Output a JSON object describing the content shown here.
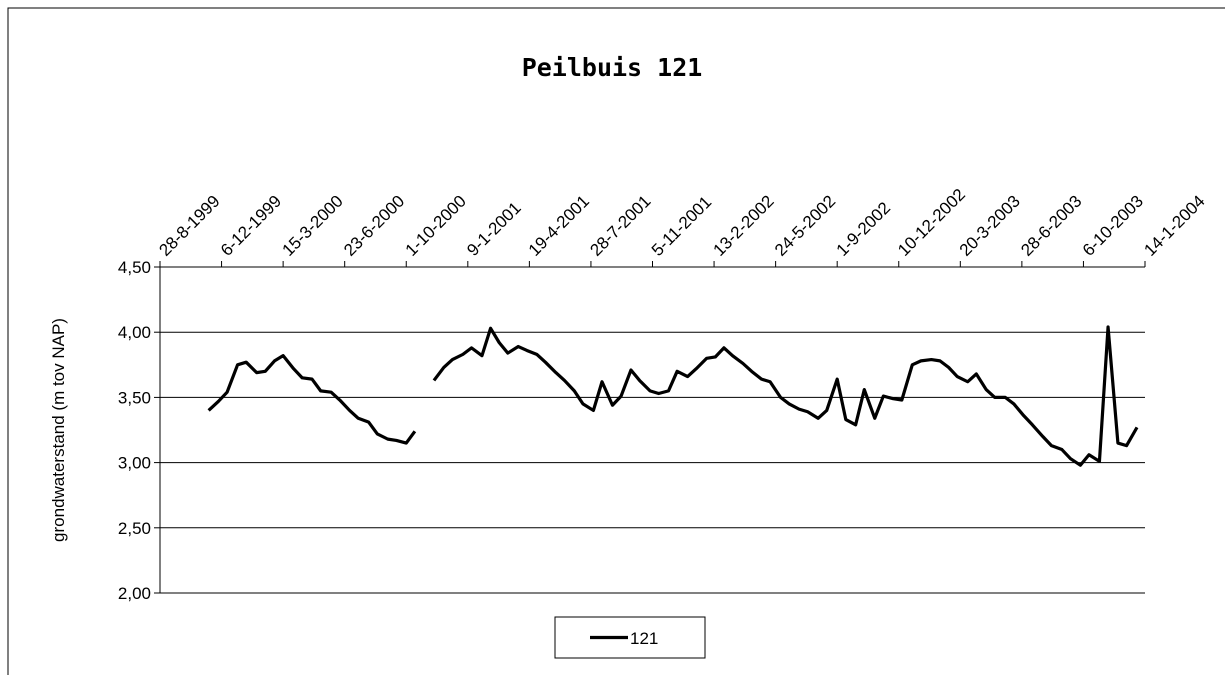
{
  "chart_data": {
    "type": "line",
    "title": "Peilbuis 121",
    "y_label": "grondwaterstand (m tov NAP)",
    "x": [
      "1999-11-15",
      "1999-12-01",
      "1999-12-15",
      "2000-01-01",
      "2000-01-15",
      "2000-02-01",
      "2000-02-15",
      "2000-03-01",
      "2000-03-15",
      "2000-04-01",
      "2000-04-15",
      "2000-05-01",
      "2000-05-15",
      "2000-06-01",
      "2000-06-15",
      "2000-07-01",
      "2000-07-15",
      "2000-08-01",
      "2000-08-15",
      "2000-09-01",
      "2000-09-15",
      "2000-10-01",
      "2000-10-15",
      "2000-11-01",
      "2000-11-15",
      "2000-12-01",
      "2000-12-15",
      "2001-01-01",
      "2001-01-15",
      "2001-02-01",
      "2001-02-15",
      "2001-03-01",
      "2001-03-15",
      "2001-04-01",
      "2001-04-15",
      "2001-05-01",
      "2001-05-15",
      "2001-06-01",
      "2001-06-15",
      "2001-07-01",
      "2001-07-15",
      "2001-08-01",
      "2001-08-15",
      "2001-09-01",
      "2001-09-15",
      "2001-10-01",
      "2001-10-15",
      "2001-11-01",
      "2001-11-15",
      "2001-12-01",
      "2001-12-15",
      "2002-01-01",
      "2002-01-15",
      "2002-02-01",
      "2002-02-15",
      "2002-03-01",
      "2002-03-15",
      "2002-04-01",
      "2002-04-15",
      "2002-05-01",
      "2002-05-15",
      "2002-06-01",
      "2002-06-15",
      "2002-07-01",
      "2002-07-15",
      "2002-08-01",
      "2002-08-15",
      "2002-09-01",
      "2002-09-15",
      "2002-10-01",
      "2002-10-15",
      "2002-11-01",
      "2002-11-15",
      "2002-12-01",
      "2002-12-15",
      "2003-01-01",
      "2003-01-15",
      "2003-02-01",
      "2003-02-15",
      "2003-03-01",
      "2003-03-15",
      "2003-04-01",
      "2003-04-15",
      "2003-05-01",
      "2003-05-15",
      "2003-06-01",
      "2003-06-15",
      "2003-07-01",
      "2003-07-15",
      "2003-08-01",
      "2003-08-15",
      "2003-09-01",
      "2003-09-15",
      "2003-10-01",
      "2003-10-15",
      "2003-11-01",
      "2003-11-15",
      "2003-12-01",
      "2003-12-15",
      "2004-01-01"
    ],
    "series": [
      {
        "name": "121",
        "color": "#000000",
        "values": [
          3.4,
          3.47,
          3.54,
          3.75,
          3.77,
          3.69,
          3.7,
          3.78,
          3.82,
          3.72,
          3.65,
          3.64,
          3.55,
          3.54,
          3.48,
          3.4,
          3.34,
          3.31,
          3.22,
          3.18,
          3.17,
          3.15,
          3.24,
          null,
          3.63,
          3.73,
          3.79,
          3.83,
          3.88,
          3.82,
          4.03,
          3.92,
          3.84,
          3.89,
          3.86,
          3.83,
          3.77,
          3.69,
          3.63,
          3.55,
          3.45,
          3.4,
          3.62,
          3.44,
          3.51,
          3.71,
          3.63,
          3.55,
          3.53,
          3.55,
          3.7,
          3.66,
          3.72,
          3.8,
          3.81,
          3.88,
          3.82,
          3.76,
          3.7,
          3.64,
          3.62,
          3.5,
          3.45,
          3.41,
          3.39,
          3.34,
          3.4,
          3.64,
          3.33,
          3.29,
          3.56,
          3.34,
          3.51,
          3.49,
          3.48,
          3.75,
          3.78,
          3.79,
          3.78,
          3.73,
          3.66,
          3.62,
          3.68,
          3.56,
          3.5,
          3.5,
          3.45,
          3.36,
          3.29,
          3.2,
          3.13,
          3.1,
          3.03,
          2.98,
          3.06,
          3.01,
          4.04,
          3.15,
          3.13,
          3.27
        ]
      }
    ],
    "xlim": [
      "1999-08-28",
      "2004-01-14"
    ],
    "xticks": [
      {
        "value": "1999-08-28",
        "label": "28-8-1999"
      },
      {
        "value": "1999-12-06",
        "label": "6-12-1999"
      },
      {
        "value": "2000-03-15",
        "label": "15-3-2000"
      },
      {
        "value": "2000-06-23",
        "label": "23-6-2000"
      },
      {
        "value": "2000-10-01",
        "label": "1-10-2000"
      },
      {
        "value": "2001-01-09",
        "label": "9-1-2001"
      },
      {
        "value": "2001-04-19",
        "label": "19-4-2001"
      },
      {
        "value": "2001-07-28",
        "label": "28-7-2001"
      },
      {
        "value": "2001-11-05",
        "label": "5-11-2001"
      },
      {
        "value": "2002-02-13",
        "label": "13-2-2002"
      },
      {
        "value": "2002-05-24",
        "label": "24-5-2002"
      },
      {
        "value": "2002-09-01",
        "label": "1-9-2002"
      },
      {
        "value": "2002-12-10",
        "label": "10-12-2002"
      },
      {
        "value": "2003-03-20",
        "label": "20-3-2003"
      },
      {
        "value": "2003-06-28",
        "label": "28-6-2003"
      },
      {
        "value": "2003-10-06",
        "label": "6-10-2003"
      },
      {
        "value": "2004-01-14",
        "label": "14-1-2004"
      }
    ],
    "ylim": [
      2,
      4.5
    ],
    "yticks": [
      {
        "value": 2,
        "label": "2,00"
      },
      {
        "value": 2.5,
        "label": "2,50"
      },
      {
        "value": 3,
        "label": "3,00"
      },
      {
        "value": 3.5,
        "label": "3,50"
      },
      {
        "value": 4,
        "label": "4,00"
      },
      {
        "value": 4.5,
        "label": "4,50"
      }
    ],
    "grid": true,
    "legend": "bottom"
  }
}
